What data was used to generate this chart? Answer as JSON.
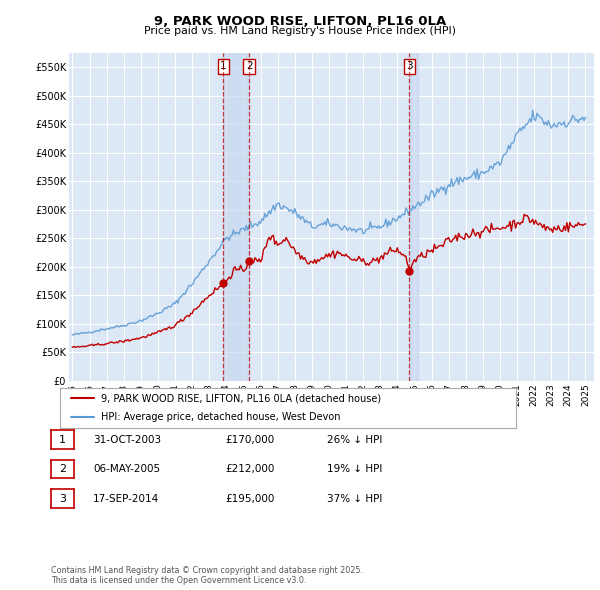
{
  "title": "9, PARK WOOD RISE, LIFTON, PL16 0LA",
  "subtitle": "Price paid vs. HM Land Registry's House Price Index (HPI)",
  "background_color": "#ffffff",
  "plot_bg_color": "#dce8f5",
  "grid_color": "#ffffff",
  "hpi_color": "#5b9bd5",
  "price_color": "#c00000",
  "shade_color": "#c8d8ee",
  "ylim": [
    0,
    575000
  ],
  "yticks": [
    0,
    50000,
    100000,
    150000,
    200000,
    250000,
    300000,
    350000,
    400000,
    450000,
    500000,
    550000
  ],
  "ytick_labels": [
    "£0",
    "£50K",
    "£100K",
    "£150K",
    "£200K",
    "£250K",
    "£300K",
    "£350K",
    "£400K",
    "£450K",
    "£500K",
    "£550K"
  ],
  "transactions": [
    {
      "date": 2003.83,
      "price": 170000,
      "label": "1"
    },
    {
      "date": 2005.35,
      "price": 212000,
      "label": "2"
    },
    {
      "date": 2014.71,
      "price": 195000,
      "label": "3"
    }
  ],
  "legend_property": "9, PARK WOOD RISE, LIFTON, PL16 0LA (detached house)",
  "legend_hpi": "HPI: Average price, detached house, West Devon",
  "table_rows": [
    [
      "1",
      "31-OCT-2003",
      "£170,000",
      "26% ↓ HPI"
    ],
    [
      "2",
      "06-MAY-2005",
      "£212,000",
      "19% ↓ HPI"
    ],
    [
      "3",
      "17-SEP-2014",
      "£195,000",
      "37% ↓ HPI"
    ]
  ],
  "footer": "Contains HM Land Registry data © Crown copyright and database right 2025.\nThis data is licensed under the Open Government Licence v3.0.",
  "xtick_years": [
    1995,
    1996,
    1997,
    1998,
    1999,
    2000,
    2001,
    2002,
    2003,
    2004,
    2005,
    2006,
    2007,
    2008,
    2009,
    2010,
    2011,
    2012,
    2013,
    2014,
    2015,
    2016,
    2017,
    2018,
    2019,
    2020,
    2021,
    2022,
    2023,
    2024,
    2025
  ],
  "hpi_anchors": {
    "1995.0": 80000,
    "1996.0": 85000,
    "1997.0": 91000,
    "1998.0": 97000,
    "1999.0": 105000,
    "2000.0": 118000,
    "2001.0": 135000,
    "2002.0": 170000,
    "2003.0": 210000,
    "2004.0": 250000,
    "2005.0": 265000,
    "2006.0": 280000,
    "2007.0": 310000,
    "2008.0": 295000,
    "2009.0": 270000,
    "2010.0": 275000,
    "2011.0": 268000,
    "2012.0": 262000,
    "2013.0": 270000,
    "2014.0": 285000,
    "2015.0": 305000,
    "2016.0": 325000,
    "2017.0": 345000,
    "2018.0": 355000,
    "2019.0": 365000,
    "2020.0": 382000,
    "2021.0": 430000,
    "2022.0": 465000,
    "2023.0": 448000,
    "2024.0": 455000,
    "2025.0": 462000
  },
  "price_anchors": {
    "1995.0": 58000,
    "1996.0": 61000,
    "1997.0": 65000,
    "1998.0": 69000,
    "1999.0": 75000,
    "2000.0": 84000,
    "2001.0": 97000,
    "2002.0": 120000,
    "2003.0": 150000,
    "2003.83": 170000,
    "2004.5": 195000,
    "2005.0": 192000,
    "2005.35": 212000,
    "2006.0": 208000,
    "2006.5": 255000,
    "2007.0": 240000,
    "2007.5": 250000,
    "2008.0": 228000,
    "2008.5": 215000,
    "2009.0": 208000,
    "2009.5": 215000,
    "2010.0": 220000,
    "2010.5": 225000,
    "2011.0": 218000,
    "2011.5": 212000,
    "2012.0": 210000,
    "2012.5": 208000,
    "2013.0": 215000,
    "2013.5": 225000,
    "2014.0": 230000,
    "2014.5": 215000,
    "2014.71": 195000,
    "2015.0": 210000,
    "2015.5": 220000,
    "2016.0": 228000,
    "2016.5": 235000,
    "2017.0": 245000,
    "2017.5": 252000,
    "2018.0": 255000,
    "2018.5": 260000,
    "2019.0": 262000,
    "2019.5": 265000,
    "2020.0": 268000,
    "2020.5": 272000,
    "2021.0": 278000,
    "2021.5": 285000,
    "2022.0": 280000,
    "2022.5": 270000,
    "2023.0": 265000,
    "2023.5": 268000,
    "2024.0": 270000,
    "2024.5": 272000,
    "2025.0": 275000
  }
}
